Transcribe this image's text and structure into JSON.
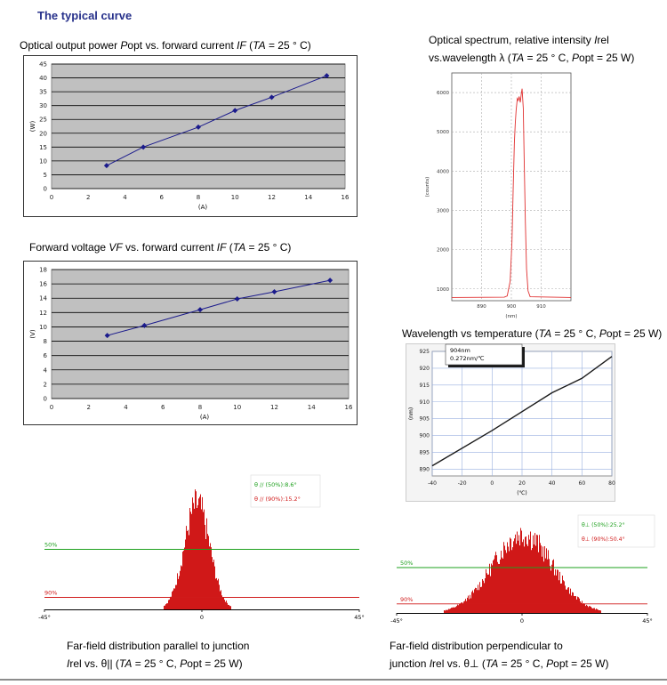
{
  "heading": "The typical curve",
  "captions": {
    "c1": [
      "Optical output power ",
      "P",
      "opt vs. forward current ",
      "IF",
      " (",
      "TA",
      " = 25 ° C)"
    ],
    "c2": [
      "Forward voltage ",
      "VF",
      " vs. forward current ",
      "IF",
      " (",
      "TA",
      " = 25 ° C)"
    ],
    "c3a": [
      "Optical spectrum, relative intensity ",
      "I",
      "rel"
    ],
    "c3b": [
      "vs.wavelength λ (",
      "TA",
      " = 25 ° C, ",
      "P",
      "opt = 25 W)"
    ],
    "c4": [
      "Wavelength vs temperature (",
      "TA",
      " = 25 ° C, ",
      "P",
      "opt = 25 W)"
    ],
    "c5a": [
      "Far-field distribution parallel to junction"
    ],
    "c5b": [
      "",
      "I",
      "rel vs. θ|| (",
      "TA",
      " = 25 ° C, ",
      "P",
      "opt = 25 W)"
    ],
    "c6a": [
      "Far-field distribution perpendicular to"
    ],
    "c6b": [
      "junction ",
      "I",
      "rel vs. θ⊥ (",
      "TA",
      " = 25 ° C, ",
      "P",
      "opt = 25 W)"
    ]
  },
  "chart_data": [
    {
      "id": "power",
      "type": "line",
      "x": [
        3,
        5,
        8,
        10,
        12,
        15
      ],
      "y": [
        8.3,
        15,
        22.2,
        28.2,
        33,
        40.8
      ],
      "xlim": [
        0,
        16
      ],
      "ylim": [
        0,
        45
      ],
      "xticks": [
        0,
        2,
        4,
        6,
        8,
        10,
        12,
        14,
        16
      ],
      "yticks": [
        0,
        5,
        10,
        15,
        20,
        25,
        30,
        35,
        40,
        45
      ],
      "xlabel": "(A)",
      "ylabel": "(W)",
      "grid": true,
      "plot_bg": "#c0c0c0",
      "line_color": "#1b1b8c"
    },
    {
      "id": "voltage",
      "type": "line",
      "x": [
        3,
        5,
        8,
        10,
        12,
        15
      ],
      "y": [
        8.8,
        10.2,
        12.4,
        13.9,
        14.9,
        16.5
      ],
      "xlim": [
        0,
        16
      ],
      "ylim": [
        0,
        18
      ],
      "xticks": [
        0,
        2,
        4,
        6,
        8,
        10,
        12,
        14,
        16
      ],
      "yticks": [
        0,
        2,
        4,
        6,
        8,
        10,
        12,
        14,
        16,
        18
      ],
      "xlabel": "(A)",
      "ylabel": "(V)",
      "grid": true,
      "plot_bg": "#c0c0c0",
      "line_color": "#1b1b8c"
    },
    {
      "id": "spectrum",
      "type": "line",
      "xlim": [
        880,
        920
      ],
      "ylim": [
        700,
        6500
      ],
      "xticks": [
        890,
        900,
        910
      ],
      "yticks": [
        1000,
        2000,
        3000,
        4000,
        5000,
        6000
      ],
      "x": [
        880,
        897.6,
        898.6,
        899.6,
        900.2,
        900.6,
        901.0,
        901.3,
        901.6,
        902.0,
        902.3,
        902.6,
        903.0,
        903.3,
        903.6,
        904.0,
        904.3,
        904.7,
        905.1,
        905.6,
        906.3,
        920
      ],
      "y": [
        780,
        790,
        820,
        1200,
        2200,
        3500,
        4700,
        5200,
        5550,
        5850,
        5800,
        5900,
        5750,
        5950,
        6100,
        5600,
        4300,
        2700,
        1500,
        950,
        800,
        780
      ],
      "xlabel": "(nm)",
      "ylabel": "(counts)",
      "grid": "dashed",
      "line_color": "#e03030"
    },
    {
      "id": "temperature",
      "type": "line",
      "x": [
        -40,
        0,
        40,
        60,
        80
      ],
      "y": [
        891,
        901.5,
        912.7,
        917,
        923.5
      ],
      "xlim": [
        -40,
        80
      ],
      "ylim": [
        888,
        925
      ],
      "xticks": [
        -40,
        -20,
        0,
        20,
        40,
        60,
        80
      ],
      "yticks": [
        890,
        895,
        900,
        905,
        910,
        915,
        920,
        925
      ],
      "xlabel": "(℃)",
      "ylabel": "(nm)",
      "annotation": [
        "904nm",
        "0.272nm/℃"
      ],
      "grid": true,
      "line_color": "#1a1a1a",
      "grid_color": "#9ab0e0"
    },
    {
      "id": "farfield_parallel",
      "type": "area",
      "xlim": [
        -45,
        45
      ],
      "xtick_labels": [
        "-45°",
        "0",
        "45°"
      ],
      "peak_center_deg": -1.5,
      "fwhm_deg": 8.6,
      "levels": [
        {
          "label": "50%",
          "color": "#1ea01e",
          "fraction": 0.5
        },
        {
          "label": "90%",
          "color": "#d01a1a",
          "fraction": 0.1
        }
      ],
      "legend": [
        {
          "text": "θ // (50%):8.6°",
          "color": "#1ea01e"
        },
        {
          "text": "θ // (90%):15.2°",
          "color": "#d01a1a"
        }
      ],
      "fill_color": "#d01818"
    },
    {
      "id": "farfield_perpendicular",
      "type": "area",
      "xlim": [
        -45,
        45
      ],
      "xtick_labels": [
        "-45°",
        "0",
        "45°"
      ],
      "peak_center_deg": 0,
      "fwhm_deg": 25.2,
      "levels": [
        {
          "label": "50%",
          "color": "#1ea01e",
          "fraction": 0.5
        },
        {
          "label": "90%",
          "color": "#d01a1a",
          "fraction": 0.1
        }
      ],
      "legend": [
        {
          "text": "θ⊥ (50%):25.2°",
          "color": "#1ea01e"
        },
        {
          "text": "θ⊥ (90%):50.4°",
          "color": "#d01a1a"
        }
      ],
      "fill_color": "#d01818"
    }
  ]
}
